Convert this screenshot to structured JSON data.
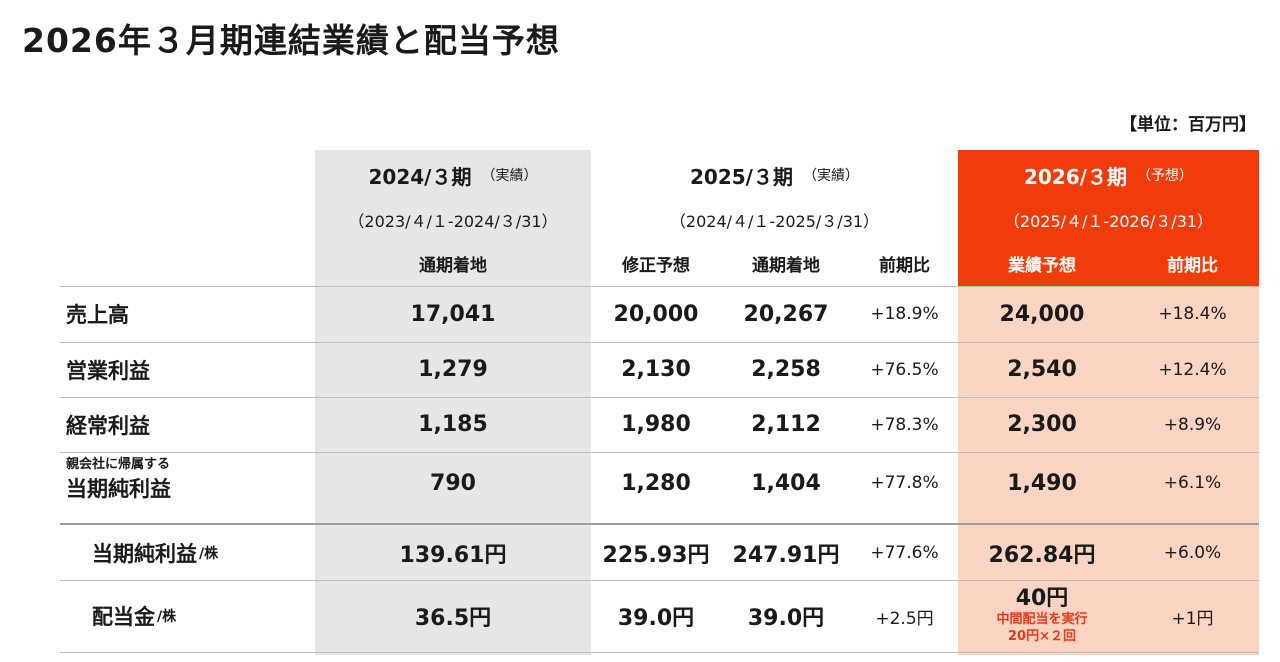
{
  "title": "2026年３月期連結業績と配当予想",
  "unit": "【単位：百万円】",
  "columns": {
    "fy2024": {
      "year": "2024/３期",
      "tag": "（実績）",
      "period": "（2023/４/１-2024/３/31）",
      "col1": "通期着地"
    },
    "fy2025": {
      "year": "2025/３期",
      "tag": "（実績）",
      "period": "（2024/４/１-2025/３/31）",
      "col1": "修正予想",
      "col2": "通期着地",
      "col3": "前期比"
    },
    "fy2026": {
      "year": "2026/３期",
      "tag": "（予想）",
      "period": "（2025/４/１-2026/３/31）",
      "col1": "業績予想",
      "col2": "前期比"
    }
  },
  "rows": [
    {
      "label": "売上高",
      "v2024": "17,041",
      "rev2025": "20,000",
      "act2025": "20,267",
      "yoy2025": "+18.9%",
      "fc2026": "24,000",
      "yoy2026": "+18.4%"
    },
    {
      "label": "営業利益",
      "v2024": "1,279",
      "rev2025": "2,130",
      "act2025": "2,258",
      "yoy2025": "+76.5%",
      "fc2026": "2,540",
      "yoy2026": "+12.4%"
    },
    {
      "label": "経常利益",
      "v2024": "1,185",
      "rev2025": "1,980",
      "act2025": "2,112",
      "yoy2025": "+78.3%",
      "fc2026": "2,300",
      "yoy2026": "+8.9%"
    },
    {
      "label_small": "親会社に帰属する",
      "label": "当期純利益",
      "v2024": "790",
      "rev2025": "1,280",
      "act2025": "1,404",
      "yoy2025": "+77.8%",
      "fc2026": "1,490",
      "yoy2026": "+6.1%"
    },
    {
      "label": "当期純利益",
      "per": "/株",
      "v2024": "139.61円",
      "rev2025": "225.93円",
      "act2025": "247.91円",
      "yoy2025": "+77.6%",
      "fc2026": "262.84円",
      "yoy2026": "+6.0%"
    },
    {
      "label": "配当金",
      "per": "/株",
      "v2024": "36.5円",
      "rev2025": "39.0円",
      "act2025": "39.0円",
      "yoy2025": "+2.5円",
      "fc2026": "40円",
      "fc2026_note1": "中間配当を実行",
      "fc2026_note2": "20円×２回",
      "yoy2026": "+1円"
    }
  ],
  "colors": {
    "forecast_header": "#f03c0a",
    "forecast_body": "#f9d4c2",
    "actual_2024_bg": "#e6e6e6",
    "note_red": "#e8381a"
  }
}
